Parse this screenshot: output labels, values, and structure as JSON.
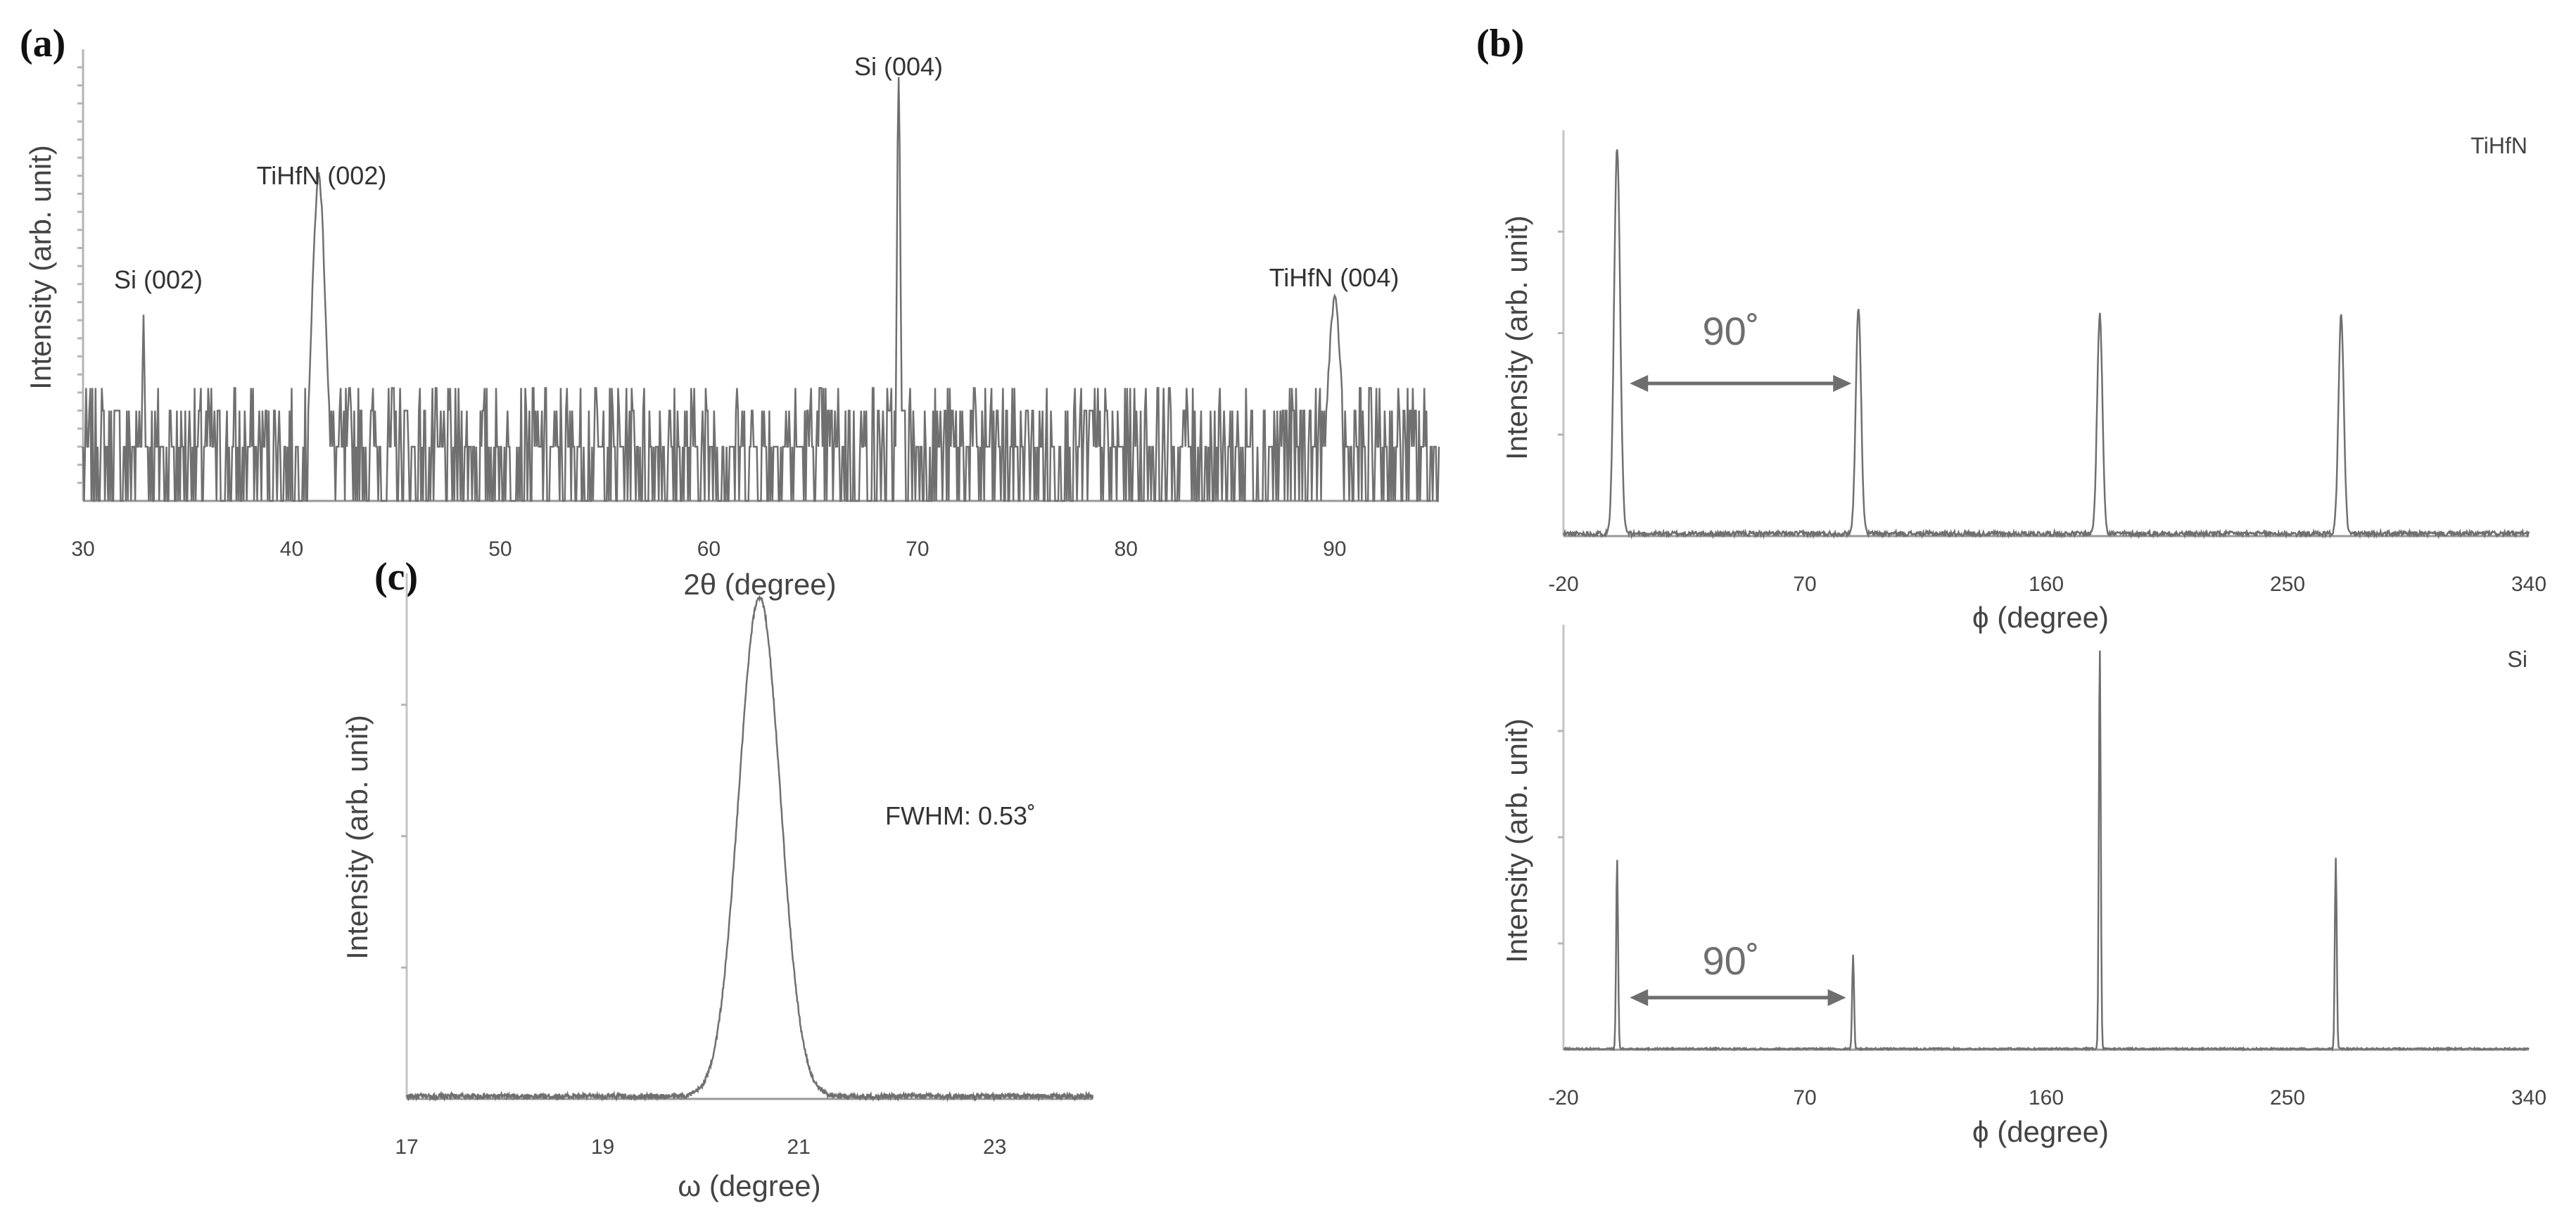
{
  "figure": {
    "accent_color": "#6e6e6e"
  },
  "chart_data": [
    {
      "id": "a",
      "panel_label": "(a)",
      "type": "line",
      "xlabel": "2θ (degree)",
      "ylabel": "Intensity (arb. unit)",
      "xlim": [
        30,
        95
      ],
      "xticks": [
        30,
        40,
        50,
        60,
        70,
        80,
        90
      ],
      "log_scale_y": true,
      "noise_level": 0.25,
      "peaks": [
        {
          "x": 32.9,
          "height": 0.42,
          "width": 0.08,
          "label": "Si (002)"
        },
        {
          "x": 41.3,
          "height": 0.72,
          "width": 0.45,
          "label": "TiHfN (002)"
        },
        {
          "x": 69.1,
          "height": 0.93,
          "width": 0.12,
          "label": "Si (004)"
        },
        {
          "x": 90.0,
          "height": 0.44,
          "width": 0.45,
          "label": "TiHfN (004)"
        }
      ]
    },
    {
      "id": "b-top",
      "panel_label": "(b)",
      "type": "line",
      "xlabel": "ϕ (degree)",
      "ylabel": "Intensity (arb. unit)",
      "series_label": "TiHfN",
      "xlim": [
        -20,
        340
      ],
      "xticks": [
        -20,
        70,
        160,
        250,
        340
      ],
      "peaks": [
        {
          "x": 0,
          "height": 0.95,
          "width": 1.6
        },
        {
          "x": 90,
          "height": 0.56,
          "width": 1.4
        },
        {
          "x": 180,
          "height": 0.54,
          "width": 1.4
        },
        {
          "x": 270,
          "height": 0.54,
          "width": 1.4
        }
      ],
      "annotation": {
        "text": "90˚",
        "x_from": 0,
        "x_to": 90
      }
    },
    {
      "id": "b-bottom",
      "type": "line",
      "xlabel": "ϕ (degree)",
      "ylabel": "Intensity (arb. unit)",
      "series_label": "Si",
      "xlim": [
        -20,
        340
      ],
      "xticks": [
        -20,
        70,
        160,
        250,
        340
      ],
      "peaks": [
        {
          "x": 0,
          "height": 0.45,
          "width": 0.5
        },
        {
          "x": 88,
          "height": 0.22,
          "width": 0.5
        },
        {
          "x": 180,
          "height": 0.95,
          "width": 0.5
        },
        {
          "x": 268,
          "height": 0.45,
          "width": 0.5
        }
      ],
      "annotation": {
        "text": "90˚",
        "x_from": 0,
        "x_to": 88
      }
    },
    {
      "id": "c",
      "panel_label": "(c)",
      "type": "line",
      "xlabel": "ω (degree)",
      "ylabel": "Intensity (arb. unit)",
      "xlim": [
        17,
        24
      ],
      "xticks": [
        17,
        19,
        21,
        23
      ],
      "peaks": [
        {
          "x": 20.6,
          "height": 0.95,
          "width": 0.3
        }
      ],
      "annotation": {
        "text": "FWHM: 0.53˚"
      }
    }
  ]
}
